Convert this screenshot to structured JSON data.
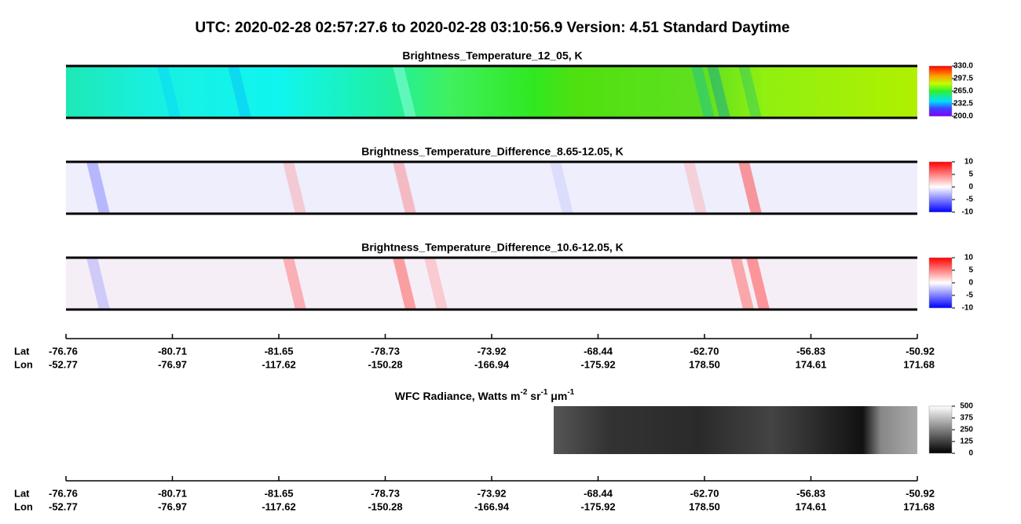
{
  "title": "UTC:  2020-02-28   02:57:27.6  to  2020-02-28   03:10:56.9    Version: 4.51  Standard Daytime",
  "panels": [
    {
      "title": "Brightness_Temperature_12_05, K",
      "colorbar": [
        "330.0",
        "297.5",
        "265.0",
        "232.5",
        "200.0"
      ]
    },
    {
      "title": "Brightness_Temperature_Difference_8.65-12.05, K",
      "colorbar": [
        "10",
        "5",
        "0",
        "-5",
        "-10"
      ]
    },
    {
      "title": "Brightness_Temperature_Difference_10.6-12.05, K",
      "colorbar": [
        "10",
        "5",
        "0",
        "-5",
        "-10"
      ]
    }
  ],
  "wfc": {
    "title": [
      "WFC Radiance, Watts m",
      "-2",
      " sr",
      "-1",
      " μm",
      "-1"
    ],
    "colorbar": [
      "500",
      "375",
      "250",
      "125",
      "0"
    ]
  },
  "axes": [
    {
      "row_labels": [
        "Lat",
        "Lon"
      ],
      "lat": [
        "-76.76",
        "-80.71",
        "-81.65",
        "-78.73",
        "-73.92",
        "-68.44",
        "-62.70",
        "-56.83",
        "-50.92"
      ],
      "lon": [
        "-52.77",
        "-76.97",
        "-117.62",
        "-150.28",
        "-166.94",
        "-175.92",
        "178.50",
        "174.61",
        "171.68"
      ]
    },
    {
      "row_labels": [
        "Lat",
        "Lon"
      ],
      "lat": [
        "-76.76",
        "-80.71",
        "-81.65",
        "-78.73",
        "-73.92",
        "-68.44",
        "-62.70",
        "-56.83",
        "-50.92"
      ],
      "lon": [
        "-52.77",
        "-76.97",
        "-117.62",
        "-150.28",
        "-166.94",
        "-175.92",
        "178.50",
        "174.61",
        "171.68"
      ]
    }
  ]
}
